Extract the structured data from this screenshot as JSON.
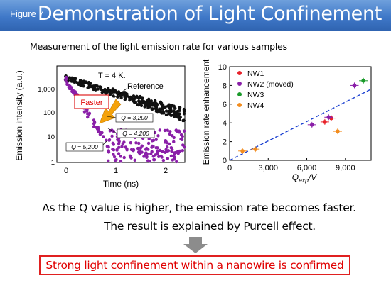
{
  "header": {
    "figure_label": "Figure 7",
    "title": "Demonstration of Light Confinement",
    "accent": "#3f78c8"
  },
  "subtitle": "Measurement of the light emission rate for various samples",
  "left_plot": {
    "ylabel": "Emission intensity (a.u.)",
    "xlabel": "Time (ns)",
    "temperature": "T = 4 K.",
    "reference": "Reference",
    "faster": "Faster",
    "q_labels": [
      "Q = 3,200",
      "Q = 4,200",
      "Q = 5,200"
    ],
    "yticks": [
      "1,000",
      "100",
      "10",
      "1"
    ],
    "xticks": [
      "0",
      "1",
      "2"
    ]
  },
  "chart_data": {
    "type": "scatter",
    "xlabel": "Q_exp/V",
    "ylabel": "Emission rate enhancement",
    "xlim": [
      0,
      11000
    ],
    "ylim": [
      0,
      10
    ],
    "xticks": [
      "0",
      "3,000",
      "6,000",
      "9,000"
    ],
    "yticks": [
      "0",
      "2",
      "4",
      "6",
      "8",
      "10"
    ],
    "legend_position": "top-left",
    "series": [
      {
        "name": "NW1",
        "color": "#e8222a",
        "points": [
          {
            "x": 7400,
            "y": 4.1
          },
          {
            "x": 7900,
            "y": 4.5
          }
        ]
      },
      {
        "name": "NW2 (moved)",
        "color": "#8a1fa8",
        "points": [
          {
            "x": 6400,
            "y": 3.8
          },
          {
            "x": 7700,
            "y": 4.6
          },
          {
            "x": 9700,
            "y": 8.0
          }
        ]
      },
      {
        "name": "NW3",
        "color": "#1a9a2a",
        "points": [
          {
            "x": 10400,
            "y": 8.5
          }
        ]
      },
      {
        "name": "NW4",
        "color": "#f28c1e",
        "points": [
          {
            "x": 1000,
            "y": 1.0
          },
          {
            "x": 2000,
            "y": 1.2
          },
          {
            "x": 8400,
            "y": 3.1
          }
        ]
      }
    ],
    "fit_line": {
      "x": [
        0,
        11000
      ],
      "y": [
        0,
        7.6
      ]
    }
  },
  "statement1": "As the Q value is higher, the emission rate becomes faster.",
  "statement2": "The result is explained by Purcell effect.",
  "conclusion": "Strong light confinement within a nanowire is confirmed"
}
